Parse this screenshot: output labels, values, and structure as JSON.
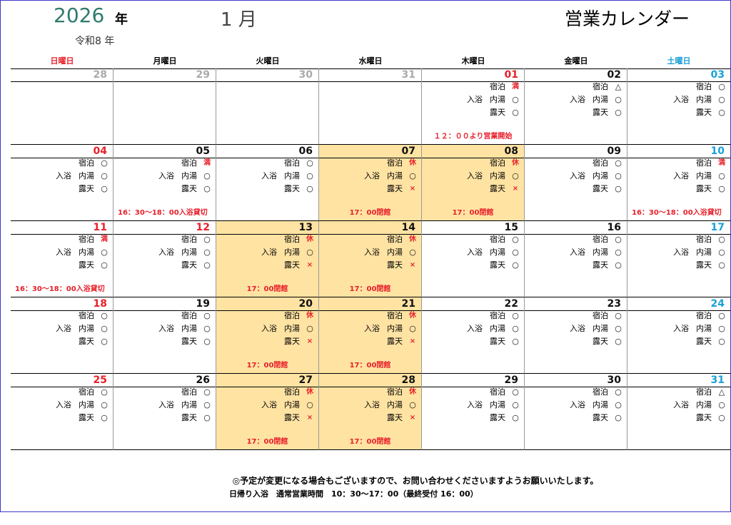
{
  "header": {
    "year": "2026",
    "year_unit": "年",
    "era": "令和8 年",
    "month": "1 月",
    "title": "営業カレンダー"
  },
  "weekdays": [
    "日曜日",
    "月曜日",
    "火曜日",
    "水曜日",
    "木曜日",
    "金曜日",
    "土曜日"
  ],
  "labels": {
    "lodging": "宿泊",
    "bath_group": "入浴",
    "bath": "内湯",
    "open_air": "露天"
  },
  "status_colors": {
    "満": "#e8202a",
    "休": "#e8202a",
    "×": "#e8202a"
  },
  "weeks": [
    [
      {
        "date": "28",
        "other_month": true
      },
      {
        "date": "29",
        "other_month": true
      },
      {
        "date": "30",
        "other_month": true
      },
      {
        "date": "31",
        "other_month": true
      },
      {
        "date": "01",
        "holiday": true,
        "lodging": "満",
        "bath": "○",
        "open_air": "○",
        "note": "１２：００より営業開始"
      },
      {
        "date": "02",
        "lodging": "△",
        "bath": "○",
        "open_air": "○"
      },
      {
        "date": "03",
        "lodging": "○",
        "bath": "○",
        "open_air": "○"
      }
    ],
    [
      {
        "date": "04",
        "lodging": "○",
        "bath": "○",
        "open_air": "○"
      },
      {
        "date": "05",
        "lodging": "満",
        "bath": "○",
        "open_air": "○",
        "note": "16：30～18：00入浴貸切"
      },
      {
        "date": "06",
        "lodging": "○",
        "bath": "○",
        "open_air": "○"
      },
      {
        "date": "07",
        "closed": true,
        "lodging": "休",
        "bath": "○",
        "open_air": "×",
        "note": "17：00閉館"
      },
      {
        "date": "08",
        "closed": true,
        "lodging": "休",
        "bath": "○",
        "open_air": "×",
        "note": "17：00閉館"
      },
      {
        "date": "09",
        "lodging": "○",
        "bath": "○",
        "open_air": "○"
      },
      {
        "date": "10",
        "lodging": "満",
        "bath": "○",
        "open_air": "○",
        "note": "16：30～18：00入浴貸切"
      }
    ],
    [
      {
        "date": "11",
        "lodging": "満",
        "bath": "○",
        "open_air": "○",
        "note": "16：30～18：00入浴貸切"
      },
      {
        "date": "12",
        "holiday": true,
        "lodging": "○",
        "bath": "○",
        "open_air": "○"
      },
      {
        "date": "13",
        "closed": true,
        "lodging": "休",
        "bath": "○",
        "open_air": "×",
        "note": "17：00閉館"
      },
      {
        "date": "14",
        "closed": true,
        "lodging": "休",
        "bath": "○",
        "open_air": "×",
        "note": "17：00閉館"
      },
      {
        "date": "15",
        "lodging": "○",
        "bath": "○",
        "open_air": "○"
      },
      {
        "date": "16",
        "lodging": "○",
        "bath": "○",
        "open_air": "○"
      },
      {
        "date": "17",
        "lodging": "○",
        "bath": "○",
        "open_air": "○"
      }
    ],
    [
      {
        "date": "18",
        "lodging": "○",
        "bath": "○",
        "open_air": "○"
      },
      {
        "date": "19",
        "lodging": "○",
        "bath": "○",
        "open_air": "○"
      },
      {
        "date": "20",
        "closed": true,
        "lodging": "休",
        "bath": "○",
        "open_air": "×",
        "note": "17：00閉館"
      },
      {
        "date": "21",
        "closed": true,
        "lodging": "休",
        "bath": "○",
        "open_air": "×",
        "note": "17：00閉館"
      },
      {
        "date": "22",
        "lodging": "○",
        "bath": "○",
        "open_air": "○"
      },
      {
        "date": "23",
        "lodging": "○",
        "bath": "○",
        "open_air": "○"
      },
      {
        "date": "24",
        "lodging": "○",
        "bath": "○",
        "open_air": "○"
      }
    ],
    [
      {
        "date": "25",
        "lodging": "○",
        "bath": "○",
        "open_air": "○"
      },
      {
        "date": "26",
        "lodging": "○",
        "bath": "○",
        "open_air": "○"
      },
      {
        "date": "27",
        "closed": true,
        "lodging": "休",
        "bath": "○",
        "open_air": "×",
        "note": "17：00閉館"
      },
      {
        "date": "28",
        "closed": true,
        "lodging": "休",
        "bath": "○",
        "open_air": "×",
        "note": "17：00閉館"
      },
      {
        "date": "29",
        "lodging": "○",
        "bath": "○",
        "open_air": "○"
      },
      {
        "date": "30",
        "lodging": "○",
        "bath": "○",
        "open_air": "○"
      },
      {
        "date": "31",
        "lodging": "△",
        "bath": "○",
        "open_air": "○"
      }
    ]
  ],
  "footer": {
    "note": "◎予定が変更になる場合もございますので、お問い合わせくださいますようお願いいたします。",
    "hours": "日帰り入浴　通常営業時間　10：30～17：00（最終受付 16：00）"
  }
}
